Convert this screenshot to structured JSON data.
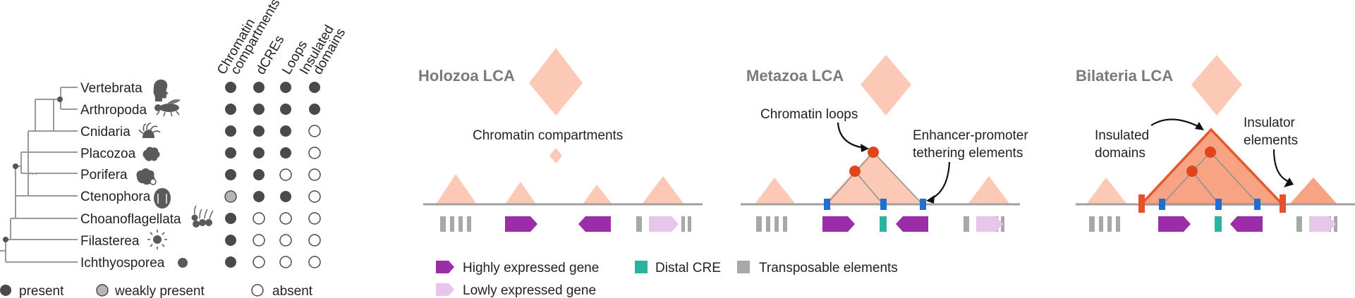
{
  "phylogeny": {
    "column_headers": [
      [
        "Chromatin",
        "compartments"
      ],
      [
        "dCREs"
      ],
      [
        "Loops"
      ],
      [
        "Insulated",
        "domains"
      ]
    ],
    "taxa": [
      {
        "name": "Vertebrata",
        "states": [
          "present",
          "present",
          "present",
          "present"
        ]
      },
      {
        "name": "Arthropoda",
        "states": [
          "present",
          "present",
          "present",
          "present"
        ]
      },
      {
        "name": "Cnidaria",
        "states": [
          "present",
          "present",
          "present",
          "absent"
        ]
      },
      {
        "name": "Placozoa",
        "states": [
          "present",
          "present",
          "present",
          "absent"
        ]
      },
      {
        "name": "Porifera",
        "states": [
          "present",
          "present",
          "absent",
          "absent"
        ]
      },
      {
        "name": "Ctenophora",
        "states": [
          "weak",
          "present",
          "present",
          "absent"
        ]
      },
      {
        "name": "Choanoflagellata",
        "states": [
          "present",
          "absent",
          "absent",
          "absent"
        ]
      },
      {
        "name": "Filasterea",
        "states": [
          "present",
          "absent",
          "absent",
          "absent"
        ]
      },
      {
        "name": "Ichthyosporea",
        "states": [
          "present",
          "absent",
          "absent",
          "absent"
        ]
      }
    ],
    "legend": {
      "present": "present",
      "weak": "weakly present",
      "absent": "absent"
    }
  },
  "panels": {
    "holozoa": {
      "title": "Holozoa LCA",
      "label": "Chromatin compartments"
    },
    "metazoa": {
      "title": "Metazoa LCA",
      "label_loops": "Chromatin loops",
      "label_tether": [
        "Enhancer-promoter",
        "tethering elements"
      ]
    },
    "bilateria": {
      "title": "Bilateria LCA",
      "label_domains": [
        "Insulated",
        "domains"
      ],
      "label_insulator": [
        "Insulator",
        "elements"
      ]
    }
  },
  "legend": {
    "high_gene": "Highly expressed gene",
    "distal_cre": "Distal CRE",
    "te": "Transposable elements",
    "low_gene": "Lowly expressed gene"
  },
  "colors": {
    "dot_present": "#4a4a4a",
    "dot_weak": "#b5b5b5",
    "tree": "#9a9a9a",
    "silhouette": "#5a5a5a",
    "peach": "#fbc9b6",
    "domain_fill": "#f8a484",
    "domain_edge": "#e05a2b",
    "loop_dot": "#e0451c",
    "high_gene": "#9b2ea8",
    "low_gene": "#e8c6ec",
    "cre": "#2bb3a0",
    "te": "#a8a8a8",
    "anchor": "#1f6fd1",
    "insulator": "#e8502a",
    "title_grey": "#7a7a7a",
    "text": "#222222"
  }
}
